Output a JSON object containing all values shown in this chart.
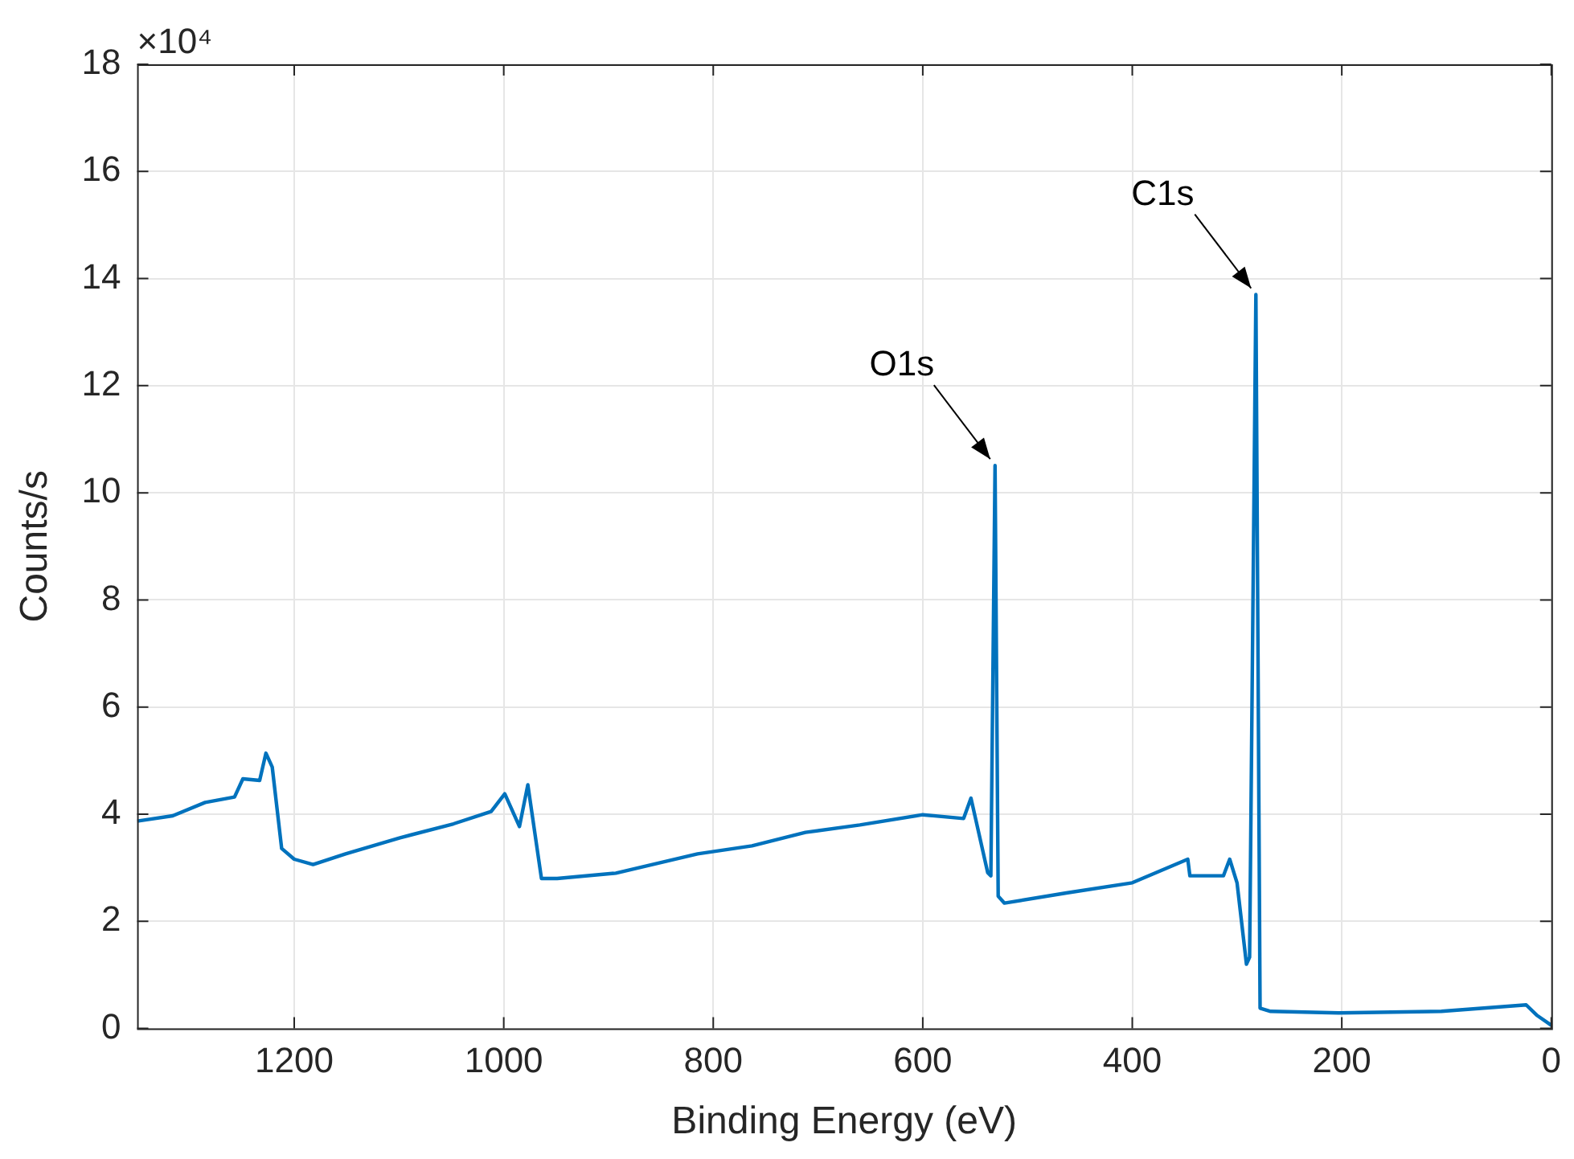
{
  "chart_data": {
    "type": "line",
    "xlabel": "Binding Energy (eV)",
    "ylabel": "Counts/s",
    "xlim": [
      1350,
      0
    ],
    "xticks": [
      1200,
      1000,
      800,
      600,
      400,
      200,
      0
    ],
    "ylim": [
      0,
      18
    ],
    "yticks": [
      0,
      2,
      4,
      6,
      8,
      10,
      12,
      14,
      16,
      18
    ],
    "grid": true,
    "legend": false,
    "marker": "none",
    "line_style": "solid",
    "annotations": [
      "×10⁴",
      {
        "text": "O1s",
        "x": 531,
        "y": 10.51
      },
      {
        "text": "C1s",
        "x": 282,
        "y": 13.7
      }
    ],
    "series": [
      {
        "color": "#0072bd",
        "x": [
          1350,
          1316,
          1285,
          1257,
          1249,
          1233,
          1227,
          1221,
          1212,
          1200,
          1182,
          1151,
          1099,
          1048,
          1012,
          999,
          985,
          977,
          964,
          949,
          893,
          815,
          763,
          712,
          660,
          600,
          561,
          554,
          538,
          535,
          531,
          528,
          522,
          463,
          400,
          347,
          345,
          313,
          307,
          300,
          291,
          288,
          282,
          278,
          268,
          203,
          105,
          24,
          14,
          0
        ],
        "values": [
          3.87,
          3.97,
          4.22,
          4.32,
          4.66,
          4.63,
          5.14,
          4.88,
          3.36,
          3.16,
          3.06,
          3.26,
          3.56,
          3.82,
          4.05,
          4.38,
          3.77,
          4.55,
          2.8,
          2.8,
          2.9,
          3.26,
          3.41,
          3.66,
          3.8,
          3.99,
          3.92,
          4.3,
          2.91,
          2.85,
          10.51,
          2.47,
          2.34,
          2.53,
          2.72,
          3.16,
          2.85,
          2.85,
          3.16,
          2.72,
          1.2,
          1.33,
          13.7,
          0.38,
          0.32,
          0.29,
          0.32,
          0.44,
          0.25,
          0.06
        ]
      }
    ]
  }
}
